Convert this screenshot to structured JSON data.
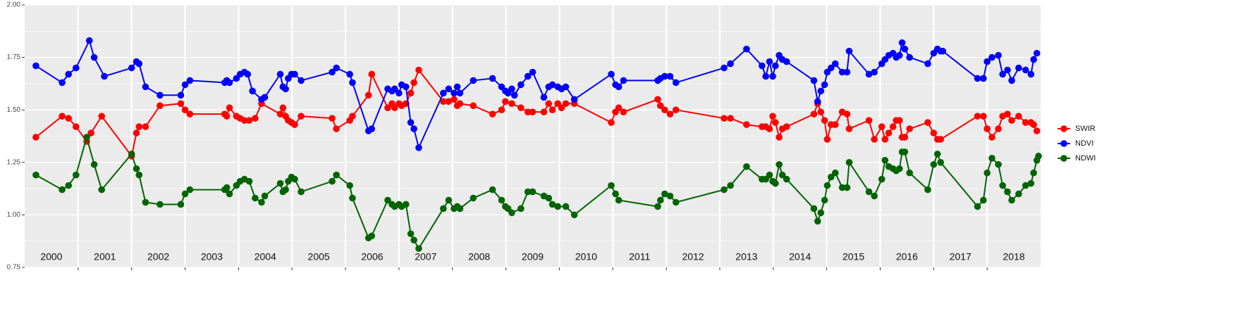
{
  "chart_data": {
    "type": "line",
    "xlim": [
      2000,
      2019
    ],
    "xticks": [
      2001,
      2002,
      2003,
      2004,
      2005,
      2006,
      2007,
      2008,
      2009,
      2010,
      2011,
      2012,
      2013,
      2014,
      2015,
      2016,
      2017,
      2018
    ],
    "year_labels": [
      {
        "value": 2000.5,
        "label": "2000"
      },
      {
        "value": 2001.5,
        "label": "2001"
      },
      {
        "value": 2002.5,
        "label": "2002"
      },
      {
        "value": 2003.5,
        "label": "2003"
      },
      {
        "value": 2004.5,
        "label": "2004"
      },
      {
        "value": 2005.5,
        "label": "2005"
      },
      {
        "value": 2006.5,
        "label": "2006"
      },
      {
        "value": 2007.5,
        "label": "2007"
      },
      {
        "value": 2008.5,
        "label": "2008"
      },
      {
        "value": 2009.5,
        "label": "2009"
      },
      {
        "value": 2010.5,
        "label": "2010"
      },
      {
        "value": 2011.5,
        "label": "2011"
      },
      {
        "value": 2012.5,
        "label": "2012"
      },
      {
        "value": 2013.5,
        "label": "2013"
      },
      {
        "value": 2014.5,
        "label": "2014"
      },
      {
        "value": 2015.5,
        "label": "2015"
      },
      {
        "value": 2016.5,
        "label": "2016"
      },
      {
        "value": 2017.5,
        "label": "2017"
      },
      {
        "value": 2018.5,
        "label": "2018"
      }
    ],
    "ylim": [
      0.75,
      2.0
    ],
    "yticks": [
      {
        "value": 0.75,
        "label": "0.75"
      },
      {
        "value": 1.0,
        "label": "1.00"
      },
      {
        "value": 1.25,
        "label": "1.25"
      },
      {
        "value": 1.5,
        "label": "1.50"
      },
      {
        "value": 1.75,
        "label": "1.75"
      },
      {
        "value": 2.0,
        "label": "2.00"
      }
    ],
    "grid": true,
    "legend": "right",
    "series": [
      {
        "name": "SWIR",
        "color": "#ff0000",
        "x": [
          2000.21,
          2000.7,
          2000.82,
          2000.96,
          2001.16,
          2001.24,
          2001.44,
          2002.0,
          2002.09,
          2002.14,
          2002.26,
          2002.53,
          2002.92,
          2003.0,
          2003.09,
          2003.74,
          2003.78,
          2003.83,
          2003.96,
          2004.03,
          2004.11,
          2004.2,
          2004.31,
          2004.43,
          2004.78,
          2004.83,
          2004.88,
          2004.93,
          2004.99,
          2005.05,
          2005.17,
          2005.75,
          2005.83,
          2006.08,
          2006.13,
          2006.43,
          2006.49,
          2006.79,
          2006.87,
          2006.92,
          2007.0,
          2007.05,
          2007.13,
          2007.22,
          2007.28,
          2007.37,
          2007.83,
          2007.93,
          2008.03,
          2008.09,
          2008.14,
          2008.39,
          2008.75,
          2008.92,
          2008.99,
          2009.11,
          2009.28,
          2009.41,
          2009.5,
          2009.71,
          2009.8,
          2009.87,
          2009.97,
          2010.04,
          2010.12,
          2010.28,
          2010.97,
          2011.05,
          2011.11,
          2011.2,
          2011.84,
          2011.89,
          2011.97,
          2012.07,
          2012.18,
          2013.08,
          2013.2,
          2013.5,
          2013.79,
          2013.86,
          2013.93,
          2013.99,
          2014.04,
          2014.11,
          2014.17,
          2014.25,
          2014.76,
          2014.83,
          2014.89,
          2014.96,
          2015.01,
          2015.08,
          2015.16,
          2015.29,
          2015.38,
          2015.42,
          2015.79,
          2015.89,
          2016.03,
          2016.09,
          2016.16,
          2016.24,
          2016.3,
          2016.36,
          2016.41,
          2016.46,
          2016.55,
          2016.89,
          2017.0,
          2017.07,
          2017.13,
          2017.82,
          2017.93,
          2018.0,
          2018.09,
          2018.21,
          2018.29,
          2018.38,
          2018.46,
          2018.59,
          2018.72,
          2018.82,
          2018.87,
          2018.93
        ],
        "values": [
          1.37,
          1.47,
          1.46,
          1.42,
          1.35,
          1.39,
          1.47,
          1.28,
          1.39,
          1.42,
          1.42,
          1.52,
          1.53,
          1.5,
          1.48,
          1.48,
          1.47,
          1.51,
          1.47,
          1.46,
          1.45,
          1.45,
          1.46,
          1.53,
          1.48,
          1.51,
          1.47,
          1.45,
          1.44,
          1.43,
          1.47,
          1.46,
          1.41,
          1.45,
          1.47,
          1.57,
          1.67,
          1.51,
          1.53,
          1.51,
          1.53,
          1.52,
          1.53,
          1.58,
          1.63,
          1.69,
          1.54,
          1.54,
          1.55,
          1.52,
          1.53,
          1.52,
          1.48,
          1.5,
          1.54,
          1.53,
          1.51,
          1.49,
          1.49,
          1.49,
          1.53,
          1.5,
          1.53,
          1.51,
          1.53,
          1.53,
          1.44,
          1.49,
          1.51,
          1.49,
          1.55,
          1.52,
          1.5,
          1.48,
          1.5,
          1.46,
          1.46,
          1.43,
          1.42,
          1.42,
          1.41,
          1.47,
          1.44,
          1.37,
          1.41,
          1.42,
          1.48,
          1.53,
          1.49,
          1.45,
          1.36,
          1.43,
          1.43,
          1.49,
          1.48,
          1.41,
          1.45,
          1.36,
          1.42,
          1.36,
          1.39,
          1.42,
          1.45,
          1.45,
          1.37,
          1.37,
          1.41,
          1.44,
          1.39,
          1.36,
          1.36,
          1.47,
          1.47,
          1.41,
          1.37,
          1.41,
          1.47,
          1.48,
          1.45,
          1.47,
          1.44,
          1.44,
          1.43,
          1.4
        ]
      },
      {
        "name": "NDVI",
        "color": "#0000ff",
        "x": [
          2000.21,
          2000.7,
          2000.82,
          2000.96,
          2001.21,
          2001.3,
          2001.49,
          2002.0,
          2002.09,
          2002.14,
          2002.26,
          2002.53,
          2002.92,
          2003.0,
          2003.09,
          2003.74,
          2003.78,
          2003.83,
          2003.96,
          2004.03,
          2004.11,
          2004.17,
          2004.26,
          2004.43,
          2004.49,
          2004.78,
          2004.83,
          2004.88,
          2004.93,
          2004.99,
          2005.05,
          2005.17,
          2005.75,
          2005.83,
          2006.08,
          2006.13,
          2006.43,
          2006.49,
          2006.79,
          2006.87,
          2006.92,
          2007.0,
          2007.05,
          2007.13,
          2007.22,
          2007.28,
          2007.37,
          2007.83,
          2007.93,
          2008.03,
          2008.09,
          2008.14,
          2008.39,
          2008.75,
          2008.92,
          2008.99,
          2009.04,
          2009.11,
          2009.16,
          2009.28,
          2009.41,
          2009.5,
          2009.71,
          2009.8,
          2009.87,
          2009.97,
          2010.04,
          2010.12,
          2010.28,
          2010.97,
          2011.05,
          2011.11,
          2011.2,
          2011.84,
          2011.89,
          2011.97,
          2012.07,
          2012.18,
          2013.08,
          2013.2,
          2013.5,
          2013.79,
          2013.86,
          2013.93,
          2013.99,
          2014.04,
          2014.11,
          2014.17,
          2014.25,
          2014.76,
          2014.83,
          2014.89,
          2014.96,
          2015.01,
          2015.08,
          2015.16,
          2015.29,
          2015.38,
          2015.42,
          2015.79,
          2015.89,
          2016.03,
          2016.09,
          2016.16,
          2016.24,
          2016.3,
          2016.36,
          2016.41,
          2016.46,
          2016.55,
          2016.89,
          2017.0,
          2017.07,
          2017.13,
          2017.17,
          2017.82,
          2017.93,
          2018.0,
          2018.09,
          2018.21,
          2018.29,
          2018.38,
          2018.46,
          2018.59,
          2018.72,
          2018.82,
          2018.87,
          2018.93
        ],
        "values": [
          1.71,
          1.63,
          1.67,
          1.7,
          1.83,
          1.75,
          1.66,
          1.7,
          1.73,
          1.72,
          1.61,
          1.57,
          1.57,
          1.62,
          1.64,
          1.63,
          1.64,
          1.63,
          1.65,
          1.67,
          1.68,
          1.67,
          1.59,
          1.55,
          1.56,
          1.67,
          1.61,
          1.6,
          1.65,
          1.67,
          1.67,
          1.64,
          1.68,
          1.7,
          1.67,
          1.63,
          1.4,
          1.41,
          1.6,
          1.59,
          1.6,
          1.58,
          1.62,
          1.61,
          1.44,
          1.41,
          1.32,
          1.58,
          1.6,
          1.58,
          1.61,
          1.58,
          1.64,
          1.65,
          1.61,
          1.59,
          1.58,
          1.6,
          1.57,
          1.62,
          1.66,
          1.68,
          1.56,
          1.61,
          1.62,
          1.61,
          1.6,
          1.61,
          1.55,
          1.67,
          1.62,
          1.61,
          1.64,
          1.64,
          1.65,
          1.66,
          1.66,
          1.63,
          1.7,
          1.72,
          1.79,
          1.71,
          1.66,
          1.73,
          1.66,
          1.71,
          1.76,
          1.74,
          1.73,
          1.64,
          1.54,
          1.59,
          1.62,
          1.68,
          1.7,
          1.72,
          1.68,
          1.68,
          1.78,
          1.67,
          1.68,
          1.72,
          1.74,
          1.76,
          1.77,
          1.75,
          1.76,
          1.82,
          1.79,
          1.75,
          1.72,
          1.77,
          1.79,
          1.78,
          1.78,
          1.65,
          1.65,
          1.73,
          1.75,
          1.76,
          1.67,
          1.69,
          1.64,
          1.7,
          1.69,
          1.67,
          1.74,
          1.77
        ]
      },
      {
        "name": "NDWI",
        "color": "#006400",
        "x": [
          2000.21,
          2000.7,
          2000.82,
          2000.96,
          2001.16,
          2001.3,
          2001.44,
          2002.0,
          2002.09,
          2002.14,
          2002.26,
          2002.53,
          2002.92,
          2003.0,
          2003.09,
          2003.74,
          2003.78,
          2003.83,
          2003.96,
          2004.03,
          2004.11,
          2004.2,
          2004.31,
          2004.43,
          2004.49,
          2004.78,
          2004.83,
          2004.88,
          2004.93,
          2004.99,
          2005.05,
          2005.17,
          2005.75,
          2005.83,
          2006.08,
          2006.13,
          2006.43,
          2006.49,
          2006.79,
          2006.87,
          2006.92,
          2007.0,
          2007.05,
          2007.13,
          2007.22,
          2007.28,
          2007.37,
          2007.83,
          2007.93,
          2008.03,
          2008.09,
          2008.14,
          2008.39,
          2008.75,
          2008.92,
          2008.99,
          2009.04,
          2009.11,
          2009.28,
          2009.41,
          2009.5,
          2009.71,
          2009.8,
          2009.87,
          2009.97,
          2010.12,
          2010.28,
          2010.97,
          2011.05,
          2011.11,
          2011.84,
          2011.89,
          2011.97,
          2012.07,
          2012.18,
          2013.08,
          2013.2,
          2013.5,
          2013.79,
          2013.86,
          2013.93,
          2013.99,
          2014.04,
          2014.11,
          2014.17,
          2014.25,
          2014.76,
          2014.83,
          2014.89,
          2014.96,
          2015.01,
          2015.08,
          2015.16,
          2015.29,
          2015.38,
          2015.42,
          2015.79,
          2015.89,
          2016.03,
          2016.09,
          2016.16,
          2016.24,
          2016.3,
          2016.36,
          2016.41,
          2016.46,
          2016.55,
          2016.89,
          2017.0,
          2017.07,
          2017.13,
          2017.82,
          2017.93,
          2018.0,
          2018.09,
          2018.21,
          2018.29,
          2018.38,
          2018.46,
          2018.59,
          2018.72,
          2018.82,
          2018.87,
          2018.93,
          2018.96
        ],
        "values": [
          1.19,
          1.12,
          1.14,
          1.19,
          1.37,
          1.24,
          1.12,
          1.29,
          1.22,
          1.19,
          1.06,
          1.05,
          1.05,
          1.1,
          1.12,
          1.12,
          1.13,
          1.1,
          1.14,
          1.16,
          1.17,
          1.16,
          1.08,
          1.06,
          1.09,
          1.15,
          1.11,
          1.12,
          1.16,
          1.18,
          1.17,
          1.11,
          1.16,
          1.19,
          1.14,
          1.08,
          0.89,
          0.9,
          1.07,
          1.05,
          1.04,
          1.05,
          1.04,
          1.05,
          0.91,
          0.88,
          0.84,
          1.03,
          1.07,
          1.03,
          1.04,
          1.03,
          1.08,
          1.12,
          1.07,
          1.04,
          1.03,
          1.01,
          1.03,
          1.11,
          1.11,
          1.09,
          1.08,
          1.05,
          1.04,
          1.04,
          1.0,
          1.14,
          1.1,
          1.07,
          1.04,
          1.07,
          1.1,
          1.09,
          1.06,
          1.12,
          1.14,
          1.23,
          1.17,
          1.17,
          1.19,
          1.16,
          1.15,
          1.24,
          1.19,
          1.17,
          1.03,
          0.97,
          1.01,
          1.07,
          1.14,
          1.18,
          1.2,
          1.13,
          1.13,
          1.25,
          1.11,
          1.09,
          1.17,
          1.26,
          1.23,
          1.22,
          1.21,
          1.22,
          1.3,
          1.3,
          1.2,
          1.12,
          1.24,
          1.29,
          1.25,
          1.04,
          1.07,
          1.2,
          1.27,
          1.24,
          1.14,
          1.11,
          1.07,
          1.1,
          1.14,
          1.15,
          1.2,
          1.26,
          1.28
        ]
      }
    ]
  }
}
